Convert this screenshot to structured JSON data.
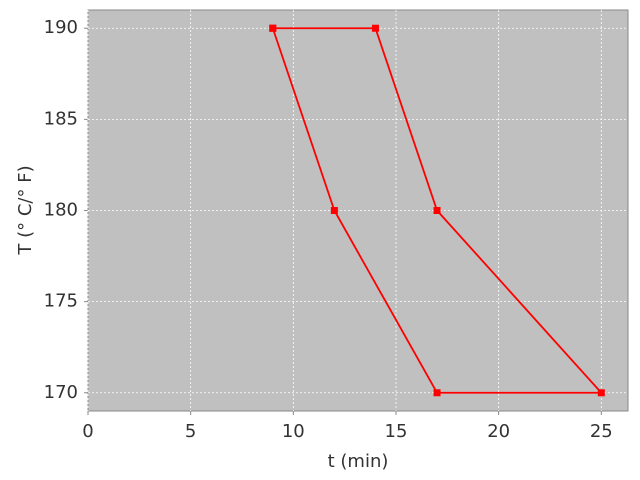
{
  "chart_data": {
    "type": "line",
    "x_label": "t (min)",
    "y_label": "T (° C/° F)",
    "x": [
      9,
      14,
      17,
      25,
      17,
      12,
      9
    ],
    "values": [
      190,
      190,
      180,
      170,
      170,
      180,
      190
    ],
    "color": "#ff0000",
    "xlim": [
      0,
      26.3
    ],
    "ylim": [
      169,
      191
    ],
    "xticks": [
      0,
      5,
      10,
      15,
      20,
      25
    ],
    "yticks": [
      170,
      175,
      180,
      185,
      190
    ],
    "grid": true
  }
}
